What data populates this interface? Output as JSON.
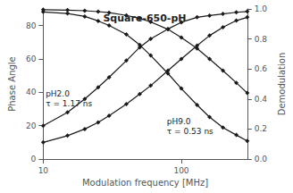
{
  "chart_data": {
    "type": "line",
    "title": "Square-650-pH",
    "xlabel": "Modulation frequency [MHz]",
    "ylabel": "Phase Angle",
    "y2label": "Demodulation",
    "log": "x",
    "x": [
      10,
      15,
      20,
      25,
      30,
      40,
      50,
      60,
      80,
      100,
      130,
      160,
      200,
      250,
      300
    ],
    "xlim": [
      10,
      300
    ],
    "xticks": [
      10,
      100
    ],
    "ylim": [
      0,
      90
    ],
    "yticks": [
      0,
      20,
      40,
      60,
      80
    ],
    "y2lim": [
      0,
      1.0
    ],
    "y2ticks": [
      {
        "value": 0,
        "label": "0.0"
      },
      0.2,
      0.4,
      0.6,
      0.8,
      {
        "value": 1,
        "label": "1.0"
      }
    ],
    "grid": false,
    "series": [
      {
        "color": "#1a1a1a",
        "marker": "diamond",
        "values": [
          20,
          28,
          36,
          43,
          49,
          59,
          67,
          72,
          78,
          82,
          85,
          86,
          87,
          88,
          88.5
        ]
      },
      {
        "color": "#1a1a1a",
        "marker": "diamond",
        "values": [
          10,
          14,
          18,
          22,
          26,
          33,
          39,
          44,
          53,
          60,
          68,
          74,
          79,
          83,
          85
        ]
      },
      {
        "color": "#1a1a1a",
        "marker": "diamond",
        "axis": "y2",
        "values": [
          0.98,
          0.97,
          0.95,
          0.92,
          0.89,
          0.83,
          0.76,
          0.69,
          0.57,
          0.47,
          0.36,
          0.28,
          0.21,
          0.16,
          0.12
        ]
      },
      {
        "color": "#1a1a1a",
        "marker": "diamond",
        "axis": "y2",
        "values": [
          0.995,
          0.992,
          0.988,
          0.982,
          0.975,
          0.957,
          0.937,
          0.914,
          0.864,
          0.809,
          0.737,
          0.667,
          0.589,
          0.508,
          0.44
        ]
      }
    ],
    "annotations": [
      "pH2.0\nτ = 1.17 ns",
      "pH9.0\nτ = 0.53 ns"
    ]
  }
}
